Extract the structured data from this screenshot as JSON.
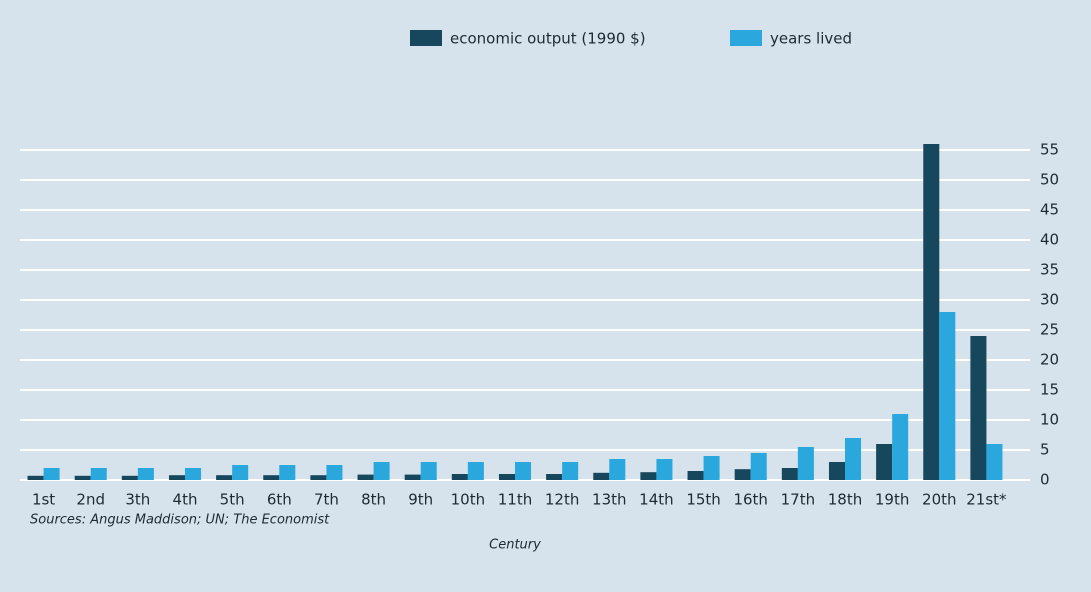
{
  "chart_data": {
    "type": "bar",
    "categories": [
      "1st",
      "2nd",
      "3th",
      "4th",
      "5th",
      "6th",
      "7th",
      "8th",
      "9th",
      "10th",
      "11th",
      "12th",
      "13th",
      "14th",
      "15th",
      "16th",
      "17th",
      "18th",
      "19th",
      "20th",
      "21st*"
    ],
    "series": [
      {
        "name": "economic output (1990 $)",
        "color": "#16475c",
        "values": [
          0.7,
          0.7,
          0.7,
          0.8,
          0.8,
          0.8,
          0.8,
          0.9,
          0.9,
          1,
          1,
          1,
          1.2,
          1.3,
          1.5,
          1.8,
          2,
          3,
          6,
          56,
          24
        ]
      },
      {
        "name": "years lived",
        "color": "#2aa8de",
        "values": [
          2,
          2,
          2,
          2,
          2.5,
          2.5,
          2.5,
          3,
          3,
          3,
          3,
          3,
          3.5,
          3.5,
          4,
          4.5,
          5.5,
          7,
          11,
          28,
          6
        ]
      }
    ],
    "ylim": [
      0,
      55
    ],
    "yticks": [
      0,
      5,
      10,
      15,
      20,
      25,
      30,
      35,
      40,
      45,
      50,
      55
    ],
    "grid": true,
    "xlabel": "Century",
    "source": "Sources: Angus Maddison; UN; The Economist"
  }
}
